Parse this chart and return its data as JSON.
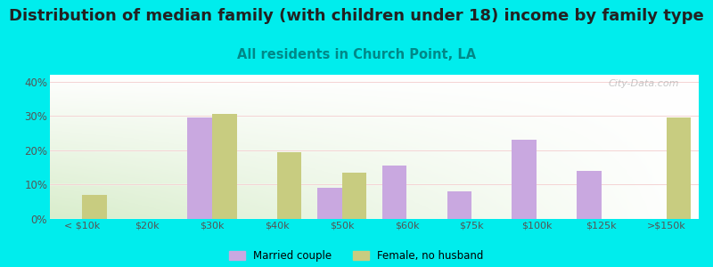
{
  "title": "Distribution of median family (with children under 18) income by family type",
  "subtitle": "All residents in Church Point, LA",
  "categories": [
    "< $10k",
    "$20k",
    "$30k",
    "$40k",
    "$50k",
    "$60k",
    "$75k",
    "$100k",
    "$125k",
    ">$150k"
  ],
  "married_couple": [
    0,
    0,
    29.5,
    0,
    9,
    15.5,
    8,
    23,
    14,
    0
  ],
  "female_no_husband": [
    7,
    0,
    30.5,
    19.5,
    13.5,
    0,
    0,
    0,
    0,
    29.5
  ],
  "married_color": "#c9a8e0",
  "female_color": "#c8cc80",
  "background_color": "#00eded",
  "ylim": [
    0,
    42
  ],
  "yticks": [
    0,
    10,
    20,
    30,
    40
  ],
  "ytick_labels": [
    "0%",
    "10%",
    "20%",
    "30%",
    "40%"
  ],
  "bar_width": 0.38,
  "title_fontsize": 13,
  "subtitle_fontsize": 10.5,
  "watermark": "City-Data.com",
  "grid_color": "#ffffff",
  "tick_label_color": "#555555",
  "title_color": "#222222",
  "subtitle_color": "#008888"
}
